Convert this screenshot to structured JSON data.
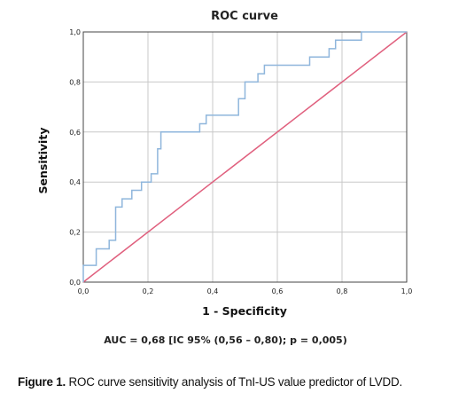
{
  "chart_data": {
    "type": "line",
    "title": "ROC curve",
    "xlabel": "1 - Specificity",
    "ylabel": "Sensitivity",
    "xlim": [
      0,
      1
    ],
    "ylim": [
      0,
      1
    ],
    "x_ticks": [
      "0,0",
      "0,2",
      "0,4",
      "0,6",
      "0,8",
      "1,0"
    ],
    "y_ticks": [
      "0,0",
      "0,2",
      "0,4",
      "0,6",
      "0,8",
      "1,0"
    ],
    "grid": true,
    "series": [
      {
        "color": "#8fb6dc",
        "points": [
          [
            0,
            0
          ],
          [
            0,
            0.067
          ],
          [
            0.04,
            0.067
          ],
          [
            0.04,
            0.133
          ],
          [
            0.08,
            0.133
          ],
          [
            0.08,
            0.167
          ],
          [
            0.1,
            0.167
          ],
          [
            0.1,
            0.3
          ],
          [
            0.12,
            0.3
          ],
          [
            0.12,
            0.333
          ],
          [
            0.15,
            0.333
          ],
          [
            0.15,
            0.367
          ],
          [
            0.18,
            0.367
          ],
          [
            0.18,
            0.4
          ],
          [
            0.21,
            0.4
          ],
          [
            0.21,
            0.433
          ],
          [
            0.23,
            0.433
          ],
          [
            0.23,
            0.533
          ],
          [
            0.24,
            0.533
          ],
          [
            0.24,
            0.6
          ],
          [
            0.36,
            0.6
          ],
          [
            0.36,
            0.633
          ],
          [
            0.38,
            0.633
          ],
          [
            0.38,
            0.667
          ],
          [
            0.48,
            0.667
          ],
          [
            0.48,
            0.733
          ],
          [
            0.5,
            0.733
          ],
          [
            0.5,
            0.8
          ],
          [
            0.54,
            0.8
          ],
          [
            0.54,
            0.833
          ],
          [
            0.56,
            0.833
          ],
          [
            0.56,
            0.867
          ],
          [
            0.7,
            0.867
          ],
          [
            0.7,
            0.9
          ],
          [
            0.76,
            0.9
          ],
          [
            0.76,
            0.933
          ],
          [
            0.78,
            0.933
          ],
          [
            0.78,
            0.967
          ],
          [
            0.86,
            0.967
          ],
          [
            0.86,
            1.0
          ],
          [
            1.0,
            1.0
          ]
        ]
      },
      {
        "color": "#e0607e",
        "points": [
          [
            0,
            0
          ],
          [
            1,
            1
          ]
        ]
      }
    ]
  },
  "annotation": "AUC = 0,68 [IC 95% (0,56 – 0,80); p = 0,005)",
  "caption": {
    "label": "Figure 1.",
    "text": " ROC curve sensitivity analysis of TnI-US value predictor of LVDD."
  }
}
